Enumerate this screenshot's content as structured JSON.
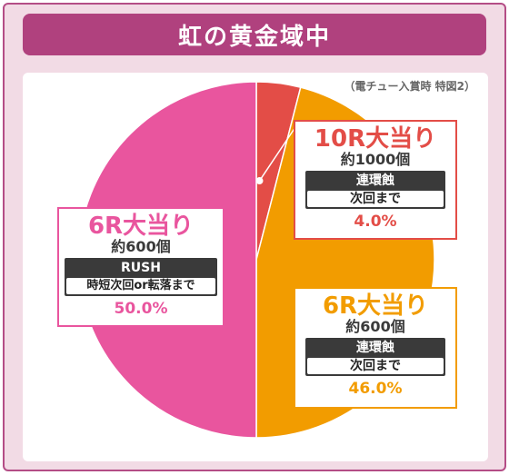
{
  "title": "虹の黄金域中",
  "note": "（電チュー入賞時 特図2）",
  "colors": {
    "frame_bg": "#f2dbe5",
    "title_bg": "#b0417e",
    "pink": "#e9559e",
    "orange": "#f29c00",
    "red": "#e34d47"
  },
  "chart_data": {
    "type": "pie",
    "slices": [
      {
        "label": "10R大当り",
        "sub": "約1000個",
        "tag": "連環蝕",
        "tag_sub": "次回まで",
        "percent_text": "4.0%",
        "value": 4.0,
        "color": "#e34d47"
      },
      {
        "label": "6R大当り",
        "sub": "約600個",
        "tag": "連環蝕",
        "tag_sub": "次回まで",
        "percent_text": "46.0%",
        "value": 46.0,
        "color": "#f29c00"
      },
      {
        "label": "6R大当り",
        "sub": "約600個",
        "tag": "RUSH",
        "tag_sub": "時短次回or転落まで",
        "percent_text": "50.0%",
        "value": 50.0,
        "color": "#e9559e"
      }
    ]
  }
}
